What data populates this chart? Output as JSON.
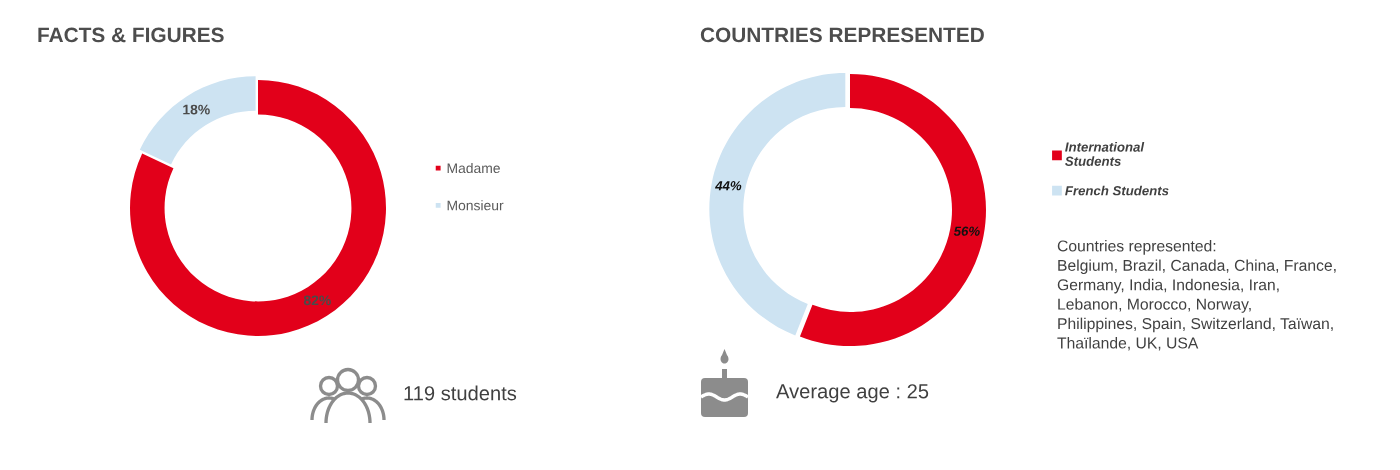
{
  "chart_data": [
    {
      "type": "donut",
      "title": "FACTS & FIGURES",
      "categories": [
        "Madame",
        "Monsieur"
      ],
      "values": [
        82,
        18
      ],
      "colors": [
        "#e2001a",
        "#cde3f2"
      ],
      "value_labels": [
        "82%",
        "18%"
      ],
      "legend": "right",
      "annotations": [
        "119 students"
      ]
    },
    {
      "type": "donut",
      "title": "COUNTRIES REPRESENTED",
      "categories": [
        "International\nStudents",
        "French Students"
      ],
      "values": [
        56,
        44
      ],
      "colors": [
        "#e2001a",
        "#cde3f2"
      ],
      "value_labels": [
        "56%",
        "44%"
      ],
      "legend": "right",
      "annotations": [
        "Average age : 25",
        "Countries represented:\nBelgium, Brazil, Canada, China, France,\nGermany, India, Indonesia, Iran,\nLebanon, Morocco, Norway,\nPhilippines, Spain, Switzerland, Taïwan,\nThaïlande, UK, USA"
      ]
    }
  ]
}
